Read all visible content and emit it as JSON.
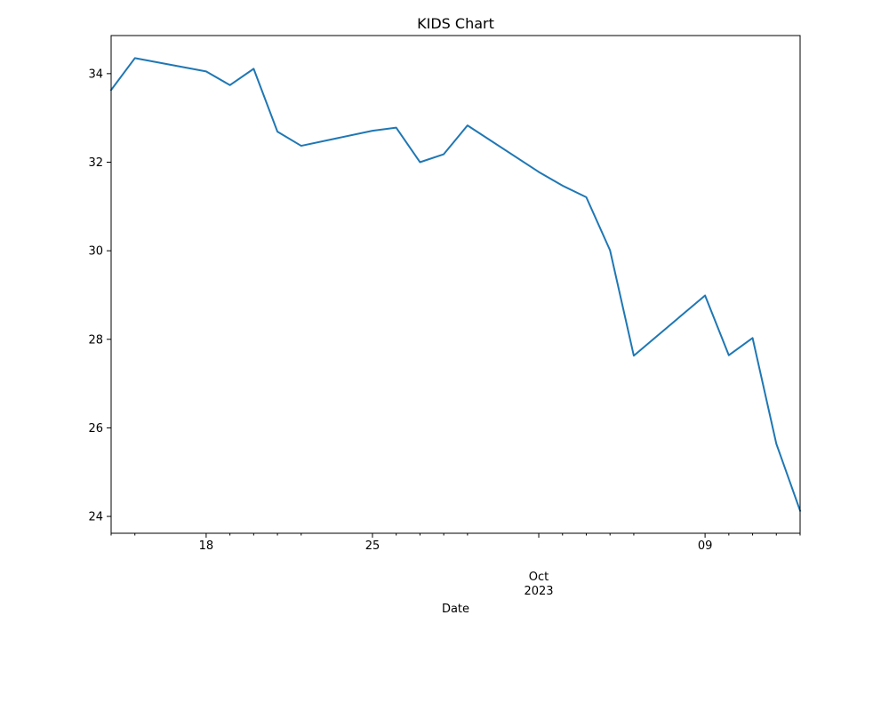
{
  "chart_data": {
    "type": "line",
    "title": "KIDS Chart",
    "xlabel": "Date",
    "ylabel": "",
    "x": [
      "2023-09-14",
      "2023-09-15",
      "2023-09-18",
      "2023-09-19",
      "2023-09-20",
      "2023-09-21",
      "2023-09-22",
      "2023-09-25",
      "2023-09-26",
      "2023-09-27",
      "2023-09-28",
      "2023-09-29",
      "2023-10-02",
      "2023-10-03",
      "2023-10-04",
      "2023-10-05",
      "2023-10-06",
      "2023-10-09",
      "2023-10-10",
      "2023-10-11",
      "2023-10-12",
      "2023-10-13"
    ],
    "series": [
      {
        "name": "",
        "color": "#1f77b4",
        "values": [
          33.63,
          34.35,
          34.05,
          33.74,
          34.11,
          32.69,
          32.37,
          32.71,
          32.78,
          32.0,
          32.18,
          32.83,
          31.78,
          31.47,
          31.21,
          30.01,
          27.63,
          28.99,
          27.64,
          28.03,
          25.64,
          24.13
        ]
      }
    ],
    "x_ticks": [
      {
        "date": "2023-09-18",
        "label": "18"
      },
      {
        "date": "2023-09-25",
        "label": "25"
      },
      {
        "date": "2023-10-02",
        "label": "",
        "major": true
      },
      {
        "date": "2023-10-09",
        "label": "09"
      }
    ],
    "x_minor_ticks": [
      "2023-09-14",
      "2023-09-15",
      "2023-09-19",
      "2023-09-20",
      "2023-09-21",
      "2023-09-22",
      "2023-09-26",
      "2023-09-27",
      "2023-09-28",
      "2023-09-29",
      "2023-10-03",
      "2023-10-04",
      "2023-10-05",
      "2023-10-06",
      "2023-10-10",
      "2023-10-11",
      "2023-10-12",
      "2023-10-13"
    ],
    "x_major_label": [
      "Oct",
      "2023"
    ],
    "y_ticks": [
      24,
      26,
      28,
      30,
      32,
      34
    ],
    "ylim": [
      23.62,
      34.86
    ],
    "grid": false,
    "legend": "none"
  }
}
